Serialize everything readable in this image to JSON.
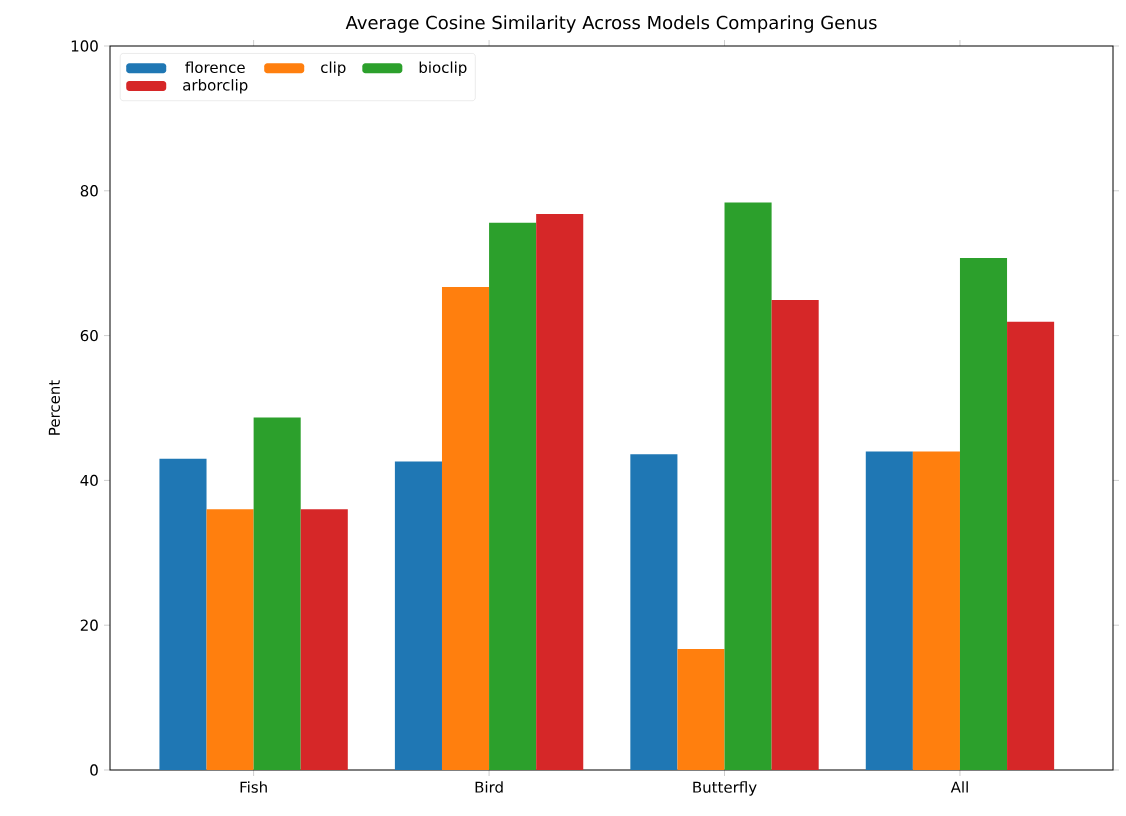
{
  "chart_data": {
    "type": "bar",
    "title": "Average Cosine Similarity Across Models Comparing Genus",
    "ylabel": "Percent",
    "categories": [
      "Fish",
      "Bird",
      "Butterfly",
      "All"
    ],
    "series": [
      {
        "name": "florence",
        "color": "#1f77b4",
        "values": [
          43.0,
          42.6,
          43.6,
          44.0
        ]
      },
      {
        "name": "clip",
        "color": "#ff7f0e",
        "values": [
          36.0,
          66.7,
          16.7,
          44.0
        ]
      },
      {
        "name": "bioclip",
        "color": "#2ca02c",
        "values": [
          48.7,
          75.6,
          78.4,
          70.7
        ]
      },
      {
        "name": "arborclip",
        "color": "#d62728",
        "values": [
          36.0,
          76.8,
          64.9,
          61.9
        ]
      }
    ],
    "ylim": [
      0,
      100
    ],
    "yticks": [
      0,
      20,
      40,
      60,
      80,
      100
    ],
    "legend": "top left",
    "grid": false
  }
}
